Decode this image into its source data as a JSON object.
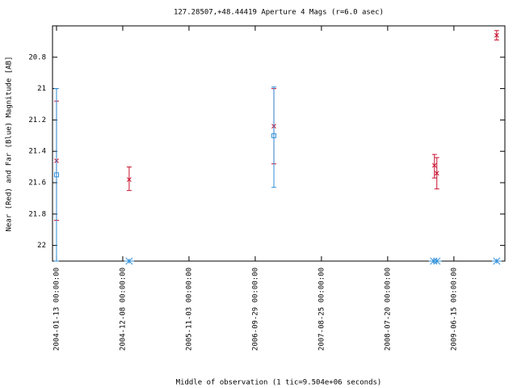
{
  "chart_data": {
    "type": "scatter",
    "title": "127.28507,+48.44419   Aperture 4 Mags (r=6.0 asec)",
    "xlabel": "Middle of observation (1 tic=9.504e+06 seconds)",
    "ylabel": "Near (Red) and Far (Blue) Magnitude [AB]",
    "xlim": [
      "2003-12-24",
      "2010-02-24"
    ],
    "xticks": [
      {
        "value": "2004-01-13",
        "label": "2004-01-13 00:00:00"
      },
      {
        "value": "2004-12-08",
        "label": "2004-12-08 00:00:00"
      },
      {
        "value": "2005-11-03",
        "label": "2005-11-03 00:00:00"
      },
      {
        "value": "2006-09-29",
        "label": "2006-09-29 00:00:00"
      },
      {
        "value": "2007-08-25",
        "label": "2007-08-25 00:00:00"
      },
      {
        "value": "2008-07-20",
        "label": "2008-07-20 00:00:00"
      },
      {
        "value": "2009-06-15",
        "label": "2009-06-15 00:00:00"
      }
    ],
    "ylim": [
      20.6,
      22.1
    ],
    "y_reversed": true,
    "yticks": [
      20.8,
      21,
      21.2,
      21.4,
      21.6,
      21.8,
      22
    ],
    "grid": false,
    "series": [
      {
        "color": "#c8102e",
        "marker": "x",
        "x": [
          "2004-01-13",
          "2005-01-09",
          "2006-12-31",
          "2009-03-10",
          "2009-03-22",
          "2010-01-14"
        ],
        "values": [
          21.46,
          21.58,
          21.24,
          21.49,
          21.54,
          20.66
        ],
        "yerr": [
          [
            21.08,
            21.84
          ],
          [
            21.5,
            21.65
          ],
          [
            21.0,
            21.48
          ],
          [
            21.42,
            21.57
          ],
          [
            21.44,
            21.64
          ],
          [
            20.63,
            20.69
          ]
        ]
      },
      {
        "color": "#2f8fd8",
        "marker": "square",
        "x": [
          "2004-01-13",
          "2006-12-31"
        ],
        "values": [
          21.55,
          21.3
        ],
        "yerr": [
          [
            21.0,
            22.1
          ],
          [
            20.99,
            21.63
          ]
        ]
      },
      {
        "color": "#2f8fd8",
        "marker": "star",
        "x": [
          "2005-01-09",
          "2009-03-06",
          "2009-03-22",
          "2010-01-14"
        ],
        "values": [
          22.1,
          22.1,
          22.1,
          22.1
        ]
      }
    ]
  }
}
